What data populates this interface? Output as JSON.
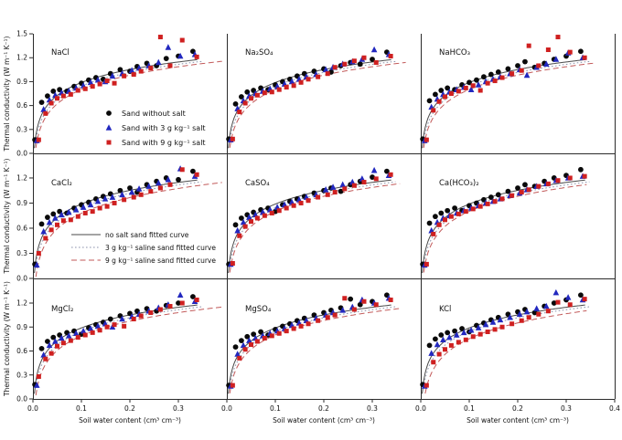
{
  "figure": {
    "y_axis_label": "Thermal conductivity (W m⁻¹ K⁻¹)",
    "x_axis_label": "Soil water content (cm³ cm⁻³)"
  },
  "chart_data": {
    "type": "scatter",
    "grid": {
      "rows": 3,
      "cols": 3
    },
    "x_axis": {
      "min": 0.0,
      "max": 0.4,
      "ticks": [
        0.0,
        0.1,
        0.2,
        0.3
      ],
      "extra_last_tick": 0.4,
      "label": "Soil water content (cm³ cm⁻³)"
    },
    "y_axis": {
      "label": "Thermal conductivity (W m⁻¹ K⁻¹)",
      "row_ticks": [
        [
          0.0,
          0.3,
          0.6,
          0.9,
          1.2,
          1.5
        ],
        [
          0.0,
          0.3,
          0.6,
          0.9,
          1.2
        ],
        [
          0.0,
          0.3,
          0.6,
          0.9,
          1.2
        ]
      ],
      "row_max": [
        1.5,
        1.49,
        1.51
      ]
    },
    "series_meta": [
      {
        "id": "no_salt",
        "label": "Sand without salt",
        "color": "#0a0a0a",
        "marker": "circle"
      },
      {
        "id": "salt3",
        "label": "Sand with 3 g kg⁻¹ salt",
        "color": "#2228bf",
        "marker": "triangle"
      },
      {
        "id": "salt9",
        "label": "Sand with 9 g kg⁻¹ salt",
        "color": "#cf2020",
        "marker": "square"
      }
    ],
    "fits_meta": [
      {
        "id": "fit_no_salt",
        "label": "no salt sand fitted curve",
        "color": "#4a4a4a",
        "style": "solid"
      },
      {
        "id": "fit_salt3",
        "label": "3 g kg⁻¹ saline sand fitted curve",
        "color": "#8b93ab",
        "style": "dotted"
      },
      {
        "id": "fit_salt9",
        "label": "9 g kg⁻¹ saline sand fitted curve",
        "color": "#c25a5a",
        "style": "dashed"
      }
    ],
    "legend_markers_title_panel": "NaCl",
    "legend_fits_title_panel": "CaCl₂",
    "x": [
      0.004,
      0.018,
      0.03,
      0.042,
      0.055,
      0.07,
      0.085,
      0.1,
      0.115,
      0.13,
      0.145,
      0.16,
      0.18,
      0.2,
      0.215,
      0.235,
      0.255,
      0.275,
      0.3,
      0.33
    ],
    "panels": [
      {
        "title": "NaCl",
        "row": 0,
        "col": 0,
        "no_salt": [
          0.17,
          0.64,
          0.72,
          0.78,
          0.8,
          0.78,
          0.84,
          0.88,
          0.92,
          0.95,
          0.93,
          1.0,
          1.05,
          1.03,
          1.09,
          1.13,
          1.1,
          1.19,
          1.22,
          1.28
        ],
        "salt3": [
          0.16,
          0.55,
          0.67,
          0.73,
          0.76,
          0.78,
          0.82,
          0.85,
          0.89,
          0.92,
          0.9,
          0.97,
          1.0,
          1.04,
          1.07,
          1.1,
          1.14,
          1.33,
          1.22,
          1.24
        ],
        "salt9": [
          0.17,
          0.5,
          0.63,
          0.69,
          0.72,
          0.74,
          0.79,
          0.81,
          0.84,
          0.87,
          0.91,
          0.88,
          0.97,
          0.99,
          1.03,
          1.07,
          1.46,
          1.1,
          1.42,
          1.21
        ],
        "fit": {
          "no_salt": [
            1.43,
            0.235
          ],
          "salt3": [
            1.415,
            0.2475
          ],
          "salt9": [
            1.4,
            0.26
          ]
        },
        "red_end": 0.392
      },
      {
        "title": "Na₂SO₄",
        "row": 0,
        "col": 1,
        "no_salt": [
          0.18,
          0.62,
          0.71,
          0.77,
          0.79,
          0.82,
          0.8,
          0.86,
          0.9,
          0.93,
          0.97,
          1.0,
          1.03,
          1.06,
          1.02,
          1.1,
          1.14,
          1.12,
          1.18,
          1.27
        ],
        "salt3": [
          0.17,
          0.56,
          0.66,
          0.72,
          0.75,
          0.78,
          0.81,
          0.84,
          0.87,
          0.9,
          0.93,
          0.96,
          0.99,
          1.05,
          1.08,
          1.12,
          1.15,
          1.18,
          1.3,
          1.24
        ],
        "salt9": [
          0.18,
          0.52,
          0.63,
          0.69,
          0.73,
          0.76,
          0.77,
          0.8,
          0.83,
          0.85,
          0.89,
          0.93,
          0.96,
          1.0,
          1.08,
          1.12,
          1.16,
          1.2,
          1.14,
          1.22
        ],
        "fit": {
          "no_salt": [
            1.43,
            0.235
          ],
          "salt3": [
            1.415,
            0.2475
          ],
          "salt9": [
            1.4,
            0.26
          ]
        },
        "red_end": 0.37
      },
      {
        "title": "NaHCO₃",
        "row": 0,
        "col": 2,
        "no_salt": [
          0.18,
          0.66,
          0.74,
          0.79,
          0.82,
          0.8,
          0.86,
          0.89,
          0.92,
          0.96,
          0.99,
          1.02,
          1.06,
          1.1,
          1.15,
          1.08,
          1.13,
          1.18,
          1.22,
          1.28
        ],
        "salt3": [
          0.16,
          0.58,
          0.68,
          0.74,
          0.77,
          0.8,
          0.83,
          0.8,
          0.86,
          0.9,
          0.93,
          0.96,
          1.0,
          1.05,
          0.98,
          1.08,
          1.12,
          1.18,
          1.26,
          1.2
        ],
        "salt9": [
          0.17,
          0.54,
          0.65,
          0.71,
          0.75,
          0.78,
          0.82,
          0.85,
          0.79,
          0.88,
          0.91,
          0.95,
          1.0,
          1.04,
          1.35,
          1.1,
          1.3,
          1.46,
          1.27,
          1.2
        ],
        "fit": {
          "no_salt": [
            1.43,
            0.235
          ],
          "salt3": [
            1.415,
            0.2475
          ],
          "salt9": [
            1.4,
            0.26
          ]
        },
        "red_end": 0.36
      },
      {
        "title": "CaCl₂",
        "row": 1,
        "col": 0,
        "no_salt": [
          0.17,
          0.65,
          0.73,
          0.77,
          0.8,
          0.78,
          0.84,
          0.88,
          0.91,
          0.95,
          0.98,
          1.01,
          1.05,
          1.08,
          1.03,
          1.12,
          1.16,
          1.2,
          1.18,
          1.28
        ],
        "salt3": [
          0.16,
          0.56,
          0.67,
          0.72,
          0.76,
          0.79,
          0.82,
          0.85,
          0.88,
          0.92,
          0.95,
          0.97,
          1.0,
          1.03,
          1.07,
          1.1,
          1.14,
          1.18,
          1.31,
          1.22
        ],
        "salt9": [
          0.3,
          0.48,
          0.58,
          0.64,
          0.69,
          0.7,
          0.74,
          0.78,
          0.8,
          0.84,
          0.86,
          0.9,
          0.94,
          0.97,
          1.0,
          1.04,
          1.08,
          1.12,
          1.3,
          1.24
        ],
        "fit": {
          "no_salt": [
            1.43,
            0.235
          ],
          "salt3": [
            1.415,
            0.2475
          ],
          "salt9": [
            1.4,
            0.27
          ]
        },
        "red_end": 0.392
      },
      {
        "title": "CaSO₄",
        "row": 1,
        "col": 1,
        "no_salt": [
          0.17,
          0.64,
          0.72,
          0.76,
          0.79,
          0.82,
          0.84,
          0.8,
          0.88,
          0.92,
          0.95,
          0.98,
          1.02,
          1.05,
          1.08,
          1.04,
          1.12,
          1.16,
          1.21,
          1.28
        ],
        "salt3": [
          0.17,
          0.57,
          0.67,
          0.73,
          0.76,
          0.79,
          0.82,
          0.85,
          0.88,
          0.91,
          0.94,
          0.97,
          1.0,
          1.06,
          1.09,
          1.12,
          1.15,
          1.19,
          1.29,
          1.23
        ],
        "salt9": [
          0.18,
          0.51,
          0.62,
          0.68,
          0.72,
          0.75,
          0.78,
          0.81,
          0.84,
          0.87,
          0.9,
          0.93,
          0.97,
          1.0,
          1.03,
          1.07,
          1.11,
          1.15,
          1.19,
          1.24
        ],
        "fit": {
          "no_salt": [
            1.43,
            0.235
          ],
          "salt3": [
            1.415,
            0.2475
          ],
          "salt9": [
            1.4,
            0.26
          ]
        },
        "red_end": 0.36
      },
      {
        "title": "Ca(HCO₃)₂",
        "row": 1,
        "col": 2,
        "no_salt": [
          0.17,
          0.66,
          0.74,
          0.78,
          0.81,
          0.84,
          0.81,
          0.87,
          0.9,
          0.94,
          0.97,
          1.0,
          1.04,
          1.08,
          1.12,
          1.1,
          1.16,
          1.2,
          1.23,
          1.3
        ],
        "salt3": [
          0.16,
          0.57,
          0.67,
          0.72,
          0.75,
          0.78,
          0.81,
          0.84,
          0.87,
          0.9,
          0.92,
          0.95,
          0.99,
          1.02,
          1.06,
          1.1,
          1.13,
          1.17,
          1.2,
          1.22
        ],
        "salt9": [
          0.17,
          0.53,
          0.64,
          0.7,
          0.74,
          0.77,
          0.8,
          0.83,
          0.86,
          0.89,
          0.92,
          0.95,
          0.99,
          1.03,
          1.06,
          1.1,
          1.13,
          1.17,
          1.2,
          1.22
        ],
        "fit": {
          "no_salt": [
            1.43,
            0.235
          ],
          "salt3": [
            1.415,
            0.2475
          ],
          "salt9": [
            1.4,
            0.26
          ]
        },
        "red_end": 0.345
      },
      {
        "title": "MgCl₂",
        "row": 2,
        "col": 0,
        "no_salt": [
          0.18,
          0.63,
          0.72,
          0.77,
          0.8,
          0.83,
          0.85,
          0.81,
          0.89,
          0.93,
          0.96,
          1.0,
          1.04,
          1.07,
          1.1,
          1.13,
          1.1,
          1.17,
          1.2,
          1.28
        ],
        "salt3": [
          0.17,
          0.55,
          0.67,
          0.72,
          0.76,
          0.79,
          0.82,
          0.85,
          0.88,
          0.91,
          0.94,
          0.9,
          1.0,
          1.03,
          1.06,
          1.1,
          1.14,
          1.18,
          1.3,
          1.22
        ],
        "salt9": [
          0.28,
          0.5,
          0.57,
          0.66,
          0.7,
          0.73,
          0.77,
          0.8,
          0.83,
          0.86,
          0.9,
          0.93,
          0.91,
          1.0,
          1.04,
          1.08,
          1.12,
          1.16,
          1.2,
          1.24
        ],
        "fit": {
          "no_salt": [
            1.43,
            0.235
          ],
          "salt3": [
            1.415,
            0.2475
          ],
          "salt9": [
            1.4,
            0.265
          ]
        },
        "red_end": 0.392
      },
      {
        "title": "MgSO₄",
        "row": 2,
        "col": 1,
        "no_salt": [
          0.17,
          0.65,
          0.73,
          0.78,
          0.81,
          0.84,
          0.8,
          0.87,
          0.91,
          0.94,
          0.98,
          1.01,
          1.05,
          1.08,
          1.11,
          1.14,
          1.25,
          1.18,
          1.22,
          1.3
        ],
        "salt3": [
          0.16,
          0.56,
          0.67,
          0.73,
          0.76,
          0.79,
          0.82,
          0.85,
          0.88,
          0.92,
          0.95,
          0.98,
          1.01,
          1.05,
          1.08,
          1.11,
          1.15,
          1.24,
          1.2,
          1.26
        ],
        "salt9": [
          0.17,
          0.51,
          0.62,
          0.68,
          0.72,
          0.76,
          0.79,
          0.82,
          0.85,
          0.88,
          0.91,
          0.94,
          0.98,
          1.02,
          1.05,
          1.26,
          1.12,
          1.22,
          1.18,
          1.24
        ],
        "fit": {
          "no_salt": [
            1.43,
            0.235
          ],
          "salt3": [
            1.415,
            0.2475
          ],
          "salt9": [
            1.4,
            0.26
          ]
        },
        "red_end": 0.36
      },
      {
        "title": "KCl",
        "row": 2,
        "col": 2,
        "no_salt": [
          0.18,
          0.67,
          0.75,
          0.8,
          0.83,
          0.85,
          0.88,
          0.84,
          0.92,
          0.95,
          0.99,
          1.02,
          1.06,
          1.09,
          1.12,
          1.08,
          1.16,
          1.2,
          1.24,
          1.3
        ],
        "salt3": [
          0.16,
          0.57,
          0.68,
          0.74,
          0.77,
          0.8,
          0.83,
          0.86,
          0.89,
          0.93,
          0.96,
          0.99,
          1.02,
          1.06,
          1.09,
          1.13,
          1.16,
          1.33,
          1.27,
          1.24
        ],
        "salt9": [
          0.17,
          0.46,
          0.56,
          0.62,
          0.67,
          0.71,
          0.74,
          0.78,
          0.81,
          0.84,
          0.87,
          0.9,
          0.94,
          0.98,
          1.02,
          1.06,
          1.1,
          1.21,
          1.18,
          1.25
        ],
        "fit": {
          "no_salt": [
            1.43,
            0.235
          ],
          "salt3": [
            1.415,
            0.2475
          ],
          "salt9": [
            1.41,
            0.285
          ]
        },
        "red_end": 0.345
      }
    ]
  }
}
